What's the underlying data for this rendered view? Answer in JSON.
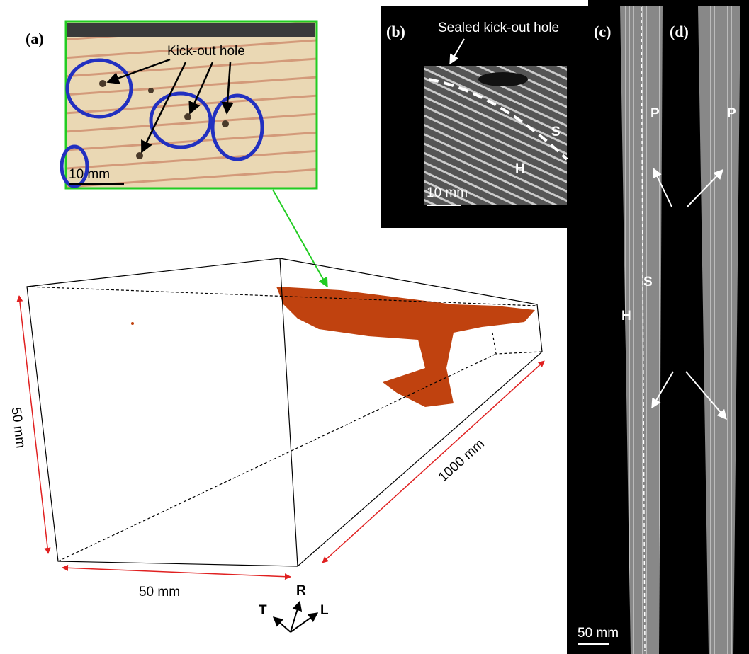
{
  "panels": {
    "a": {
      "label": "(a)",
      "annotation": "Kick-out hole",
      "scale_bar": "10 mm"
    },
    "b": {
      "label": "(b)",
      "annotation": "Sealed kick-out hole",
      "region_s": "S",
      "region_h": "H",
      "scale_bar": "10 mm"
    },
    "c": {
      "label": "(c)",
      "marker_p": "P",
      "region_s": "S",
      "region_h": "H",
      "scale_bar": "50 mm"
    },
    "d": {
      "label": "(d)",
      "marker_p": "P"
    }
  },
  "volume": {
    "height": "50 mm",
    "width": "50 mm",
    "length": "1000 mm",
    "axes": {
      "r": "R",
      "t": "T",
      "l": "L"
    }
  }
}
